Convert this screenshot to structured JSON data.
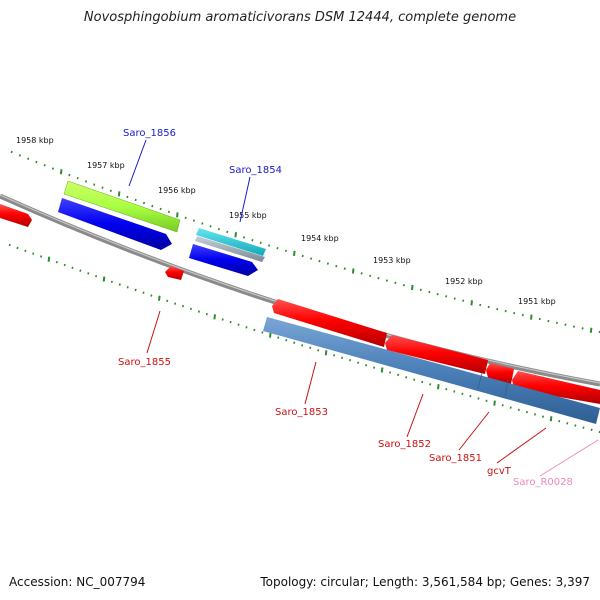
{
  "title": "Novosphingobium aromaticivorans DSM 12444, complete genome",
  "footer": {
    "accession": "Accession: NC_007794",
    "summary": "Topology: circular; Length: 3,561,584 bp; Genes: 3,397"
  },
  "colors": {
    "forward_label": "#1a1acc",
    "reverse_label": "#cc1111",
    "rna_label": "#ee88bb",
    "tick": "#2e8b2e",
    "backbone": "#888888"
  },
  "ticks_outer": [
    "1958 kbp",
    "1957 kbp",
    "1956 kbp",
    "1955 kbp",
    "1954 kbp",
    "1953 kbp",
    "1952 kbp",
    "1951 kbp"
  ],
  "genes": [
    {
      "name": "Saro_1856",
      "strand": "forward",
      "label_color": "#1a1acc"
    },
    {
      "name": "Saro_1854",
      "strand": "forward",
      "label_color": "#1a1acc"
    },
    {
      "name": "Saro_1855",
      "strand": "reverse",
      "label_color": "#cc1111"
    },
    {
      "name": "Saro_1853",
      "strand": "reverse",
      "label_color": "#cc1111"
    },
    {
      "name": "Saro_1852",
      "strand": "reverse",
      "label_color": "#cc1111"
    },
    {
      "name": "Saro_1851",
      "strand": "reverse",
      "label_color": "#cc1111"
    },
    {
      "name": "gcvT",
      "strand": "reverse",
      "label_color": "#cc1111"
    },
    {
      "name": "Saro_R0028",
      "strand": "reverse",
      "label_color": "#ee88bb"
    }
  ]
}
